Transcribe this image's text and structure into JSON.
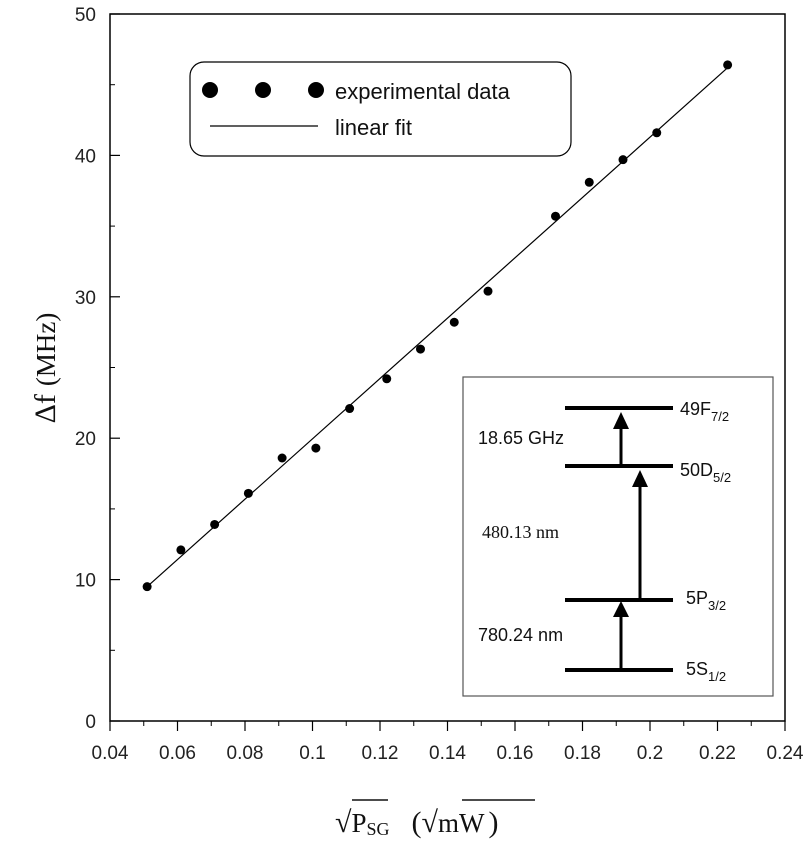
{
  "chart_data": {
    "type": "scatter",
    "title": "",
    "xlabel": "√P_SG (√mW)",
    "ylabel": "Δf (MHz)",
    "xlim": [
      0.04,
      0.24
    ],
    "ylim": [
      0,
      50
    ],
    "x_ticks": [
      "0.04",
      "0.06",
      "0.08",
      "0.1",
      "0.12",
      "0.14",
      "0.16",
      "0.18",
      "0.2",
      "0.22",
      "0.24"
    ],
    "y_ticks": [
      "0",
      "10",
      "20",
      "30",
      "40",
      "50"
    ],
    "grid": false,
    "legend_position": "top-left",
    "series": [
      {
        "name": "experimental data",
        "style": "markers",
        "x": [
          0.051,
          0.061,
          0.071,
          0.081,
          0.091,
          0.101,
          0.111,
          0.122,
          0.132,
          0.142,
          0.152,
          0.172,
          0.182,
          0.192,
          0.202,
          0.223
        ],
        "y": [
          9.5,
          12.1,
          13.9,
          16.1,
          18.6,
          19.3,
          22.1,
          24.2,
          26.3,
          28.2,
          30.4,
          35.7,
          38.1,
          39.7,
          41.6,
          46.4
        ]
      },
      {
        "name": "linear fit",
        "style": "line",
        "x": [
          0.051,
          0.223
        ],
        "y": [
          9.5,
          46.2
        ]
      }
    ],
    "legend": {
      "markers_label": "experimental data",
      "line_label": "linear fit"
    },
    "inset": {
      "levels": [
        {
          "label_main": "49F",
          "label_sub": "7/2"
        },
        {
          "label_main": "50D",
          "label_sub": "5/2"
        },
        {
          "label_main": "5P",
          "label_sub": "3/2"
        },
        {
          "label_main": "5S",
          "label_sub": "1/2"
        }
      ],
      "transitions": [
        "18.65 GHz",
        "480.13 nm",
        "780.24 nm"
      ]
    },
    "axis_titles": {
      "y_main": "Δf",
      "y_unit": "(MHz)",
      "x_sqrt_1": "√",
      "x_p": "P",
      "x_sub": "SG",
      "x_open": "(",
      "x_sqrt_2": "√",
      "x_mw": "mW",
      "x_close": ")"
    }
  }
}
